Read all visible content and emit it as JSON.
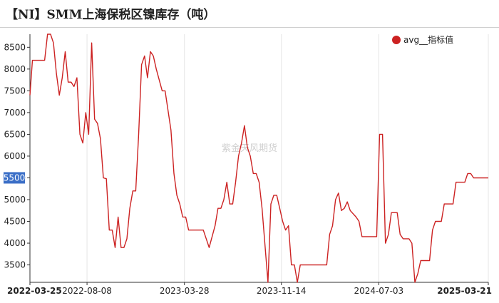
{
  "header": {
    "title": "【NI】SMM上海保税区镍库存（吨）"
  },
  "chart_data": {
    "type": "line",
    "title": "【NI】SMM上海保税区镍库存（吨）",
    "watermark": "紫金天风期货",
    "legend": {
      "position": "top-right",
      "entries": [
        "avg__指标值"
      ]
    },
    "series": [
      {
        "name": "avg__指标值",
        "color": "#cc2222",
        "points": [
          [
            "2022-03-25",
            7400
          ],
          [
            "2022-03-31",
            8200
          ],
          [
            "2022-04-15",
            8200
          ],
          [
            "2022-04-29",
            8200
          ],
          [
            "2022-05-06",
            8800
          ],
          [
            "2022-05-13",
            8800
          ],
          [
            "2022-05-20",
            8600
          ],
          [
            "2022-05-27",
            7900
          ],
          [
            "2022-06-03",
            7400
          ],
          [
            "2022-06-10",
            7800
          ],
          [
            "2022-06-17",
            8400
          ],
          [
            "2022-06-24",
            7700
          ],
          [
            "2022-07-01",
            7700
          ],
          [
            "2022-07-08",
            7600
          ],
          [
            "2022-07-15",
            7800
          ],
          [
            "2022-07-22",
            6500
          ],
          [
            "2022-07-29",
            6300
          ],
          [
            "2022-08-05",
            7000
          ],
          [
            "2022-08-12",
            6500
          ],
          [
            "2022-08-19",
            8600
          ],
          [
            "2022-08-26",
            6850
          ],
          [
            "2022-09-02",
            6750
          ],
          [
            "2022-09-09",
            6400
          ],
          [
            "2022-09-16",
            5500
          ],
          [
            "2022-09-23",
            5480
          ],
          [
            "2022-09-30",
            4300
          ],
          [
            "2022-10-07",
            4300
          ],
          [
            "2022-10-14",
            3900
          ],
          [
            "2022-10-21",
            4600
          ],
          [
            "2022-10-28",
            3900
          ],
          [
            "2022-11-04",
            3900
          ],
          [
            "2022-11-11",
            4100
          ],
          [
            "2022-11-18",
            4800
          ],
          [
            "2022-11-25",
            5200
          ],
          [
            "2022-12-02",
            5200
          ],
          [
            "2022-12-09",
            6500
          ],
          [
            "2022-12-16",
            8100
          ],
          [
            "2022-12-23",
            8300
          ],
          [
            "2022-12-30",
            7800
          ],
          [
            "2023-01-06",
            8400
          ],
          [
            "2023-01-13",
            8300
          ],
          [
            "2023-01-20",
            8000
          ],
          [
            "2023-02-03",
            7500
          ],
          [
            "2023-02-10",
            7500
          ],
          [
            "2023-02-24",
            6600
          ],
          [
            "2023-03-03",
            5600
          ],
          [
            "2023-03-10",
            5100
          ],
          [
            "2023-03-17",
            4900
          ],
          [
            "2023-03-24",
            4600
          ],
          [
            "2023-03-31",
            4600
          ],
          [
            "2023-04-07",
            4300
          ],
          [
            "2023-04-21",
            4300
          ],
          [
            "2023-05-12",
            4300
          ],
          [
            "2023-05-26",
            3900
          ],
          [
            "2023-06-09",
            4400
          ],
          [
            "2023-06-16",
            4800
          ],
          [
            "2023-06-23",
            4800
          ],
          [
            "2023-06-30",
            5000
          ],
          [
            "2023-07-07",
            5400
          ],
          [
            "2023-07-14",
            4900
          ],
          [
            "2023-07-21",
            4900
          ],
          [
            "2023-07-28",
            5400
          ],
          [
            "2023-08-04",
            6000
          ],
          [
            "2023-08-11",
            6300
          ],
          [
            "2023-08-18",
            6700
          ],
          [
            "2023-08-25",
            6200
          ],
          [
            "2023-09-01",
            6000
          ],
          [
            "2023-09-08",
            5600
          ],
          [
            "2023-09-15",
            5600
          ],
          [
            "2023-09-22",
            5400
          ],
          [
            "2023-09-29",
            4800
          ],
          [
            "2023-10-13",
            3100
          ],
          [
            "2023-10-20",
            4900
          ],
          [
            "2023-10-27",
            5100
          ],
          [
            "2023-11-03",
            5100
          ],
          [
            "2023-11-10",
            4800
          ],
          [
            "2023-11-17",
            4500
          ],
          [
            "2023-11-24",
            4300
          ],
          [
            "2023-12-01",
            4400
          ],
          [
            "2023-12-08",
            3500
          ],
          [
            "2023-12-15",
            3500
          ],
          [
            "2023-12-22",
            3100
          ],
          [
            "2023-12-29",
            3500
          ],
          [
            "2024-01-05",
            3500
          ],
          [
            "2024-03-01",
            3500
          ],
          [
            "2024-03-08",
            4200
          ],
          [
            "2024-03-15",
            4400
          ],
          [
            "2024-03-22",
            5000
          ],
          [
            "2024-03-29",
            5150
          ],
          [
            "2024-04-05",
            4750
          ],
          [
            "2024-04-12",
            4800
          ],
          [
            "2024-04-19",
            4950
          ],
          [
            "2024-04-26",
            4750
          ],
          [
            "2024-05-10",
            4600
          ],
          [
            "2024-05-17",
            4500
          ],
          [
            "2024-05-24",
            4150
          ],
          [
            "2024-06-07",
            4150
          ],
          [
            "2024-06-21",
            4150
          ],
          [
            "2024-06-28",
            4150
          ],
          [
            "2024-07-05",
            6500
          ],
          [
            "2024-07-12",
            6500
          ],
          [
            "2024-07-19",
            4000
          ],
          [
            "2024-07-26",
            4200
          ],
          [
            "2024-08-02",
            4700
          ],
          [
            "2024-08-09",
            4700
          ],
          [
            "2024-08-16",
            4700
          ],
          [
            "2024-08-23",
            4200
          ],
          [
            "2024-08-30",
            4100
          ],
          [
            "2024-09-13",
            4100
          ],
          [
            "2024-09-20",
            4000
          ],
          [
            "2024-09-27",
            3100
          ],
          [
            "2024-10-04",
            3300
          ],
          [
            "2024-10-11",
            3600
          ],
          [
            "2024-11-01",
            3600
          ],
          [
            "2024-11-08",
            4300
          ],
          [
            "2024-11-15",
            4500
          ],
          [
            "2024-11-22",
            4500
          ],
          [
            "2024-11-29",
            4500
          ],
          [
            "2024-12-06",
            4900
          ],
          [
            "2024-12-27",
            4900
          ],
          [
            "2025-01-03",
            5400
          ],
          [
            "2025-01-24",
            5400
          ],
          [
            "2025-01-31",
            5600
          ],
          [
            "2025-02-07",
            5600
          ],
          [
            "2025-02-14",
            5500
          ],
          [
            "2025-03-21",
            5500
          ]
        ]
      }
    ],
    "y_axis": {
      "min": 3100,
      "max": 8800,
      "ticks": [
        3500,
        4000,
        4500,
        5000,
        5500,
        6000,
        6500,
        7000,
        7500,
        8000,
        8500
      ]
    },
    "x_axis": {
      "min": "2022-03-25",
      "max": "2025-03-21",
      "ticks": [
        {
          "date": "2022-03-25",
          "label": "2022-03-25",
          "bold": true
        },
        {
          "date": "2022-08-08",
          "label": "2022-08-08",
          "bold": false
        },
        {
          "date": "2023-03-28",
          "label": "2023-03-28",
          "bold": false
        },
        {
          "date": "2023-11-14",
          "label": "2023-11-14",
          "bold": false
        },
        {
          "date": "2024-07-03",
          "label": "2024-07-03",
          "bold": false
        },
        {
          "date": "2025-03-21",
          "label": "2025-03-21",
          "bold": true
        }
      ]
    },
    "highlight_tick": {
      "value": 5500,
      "label": "5500",
      "bg": "#3b6fc7",
      "color": "#ffffff"
    },
    "grid": {
      "vertical": true,
      "horizontal": false,
      "color": "#e6e6e6"
    }
  }
}
